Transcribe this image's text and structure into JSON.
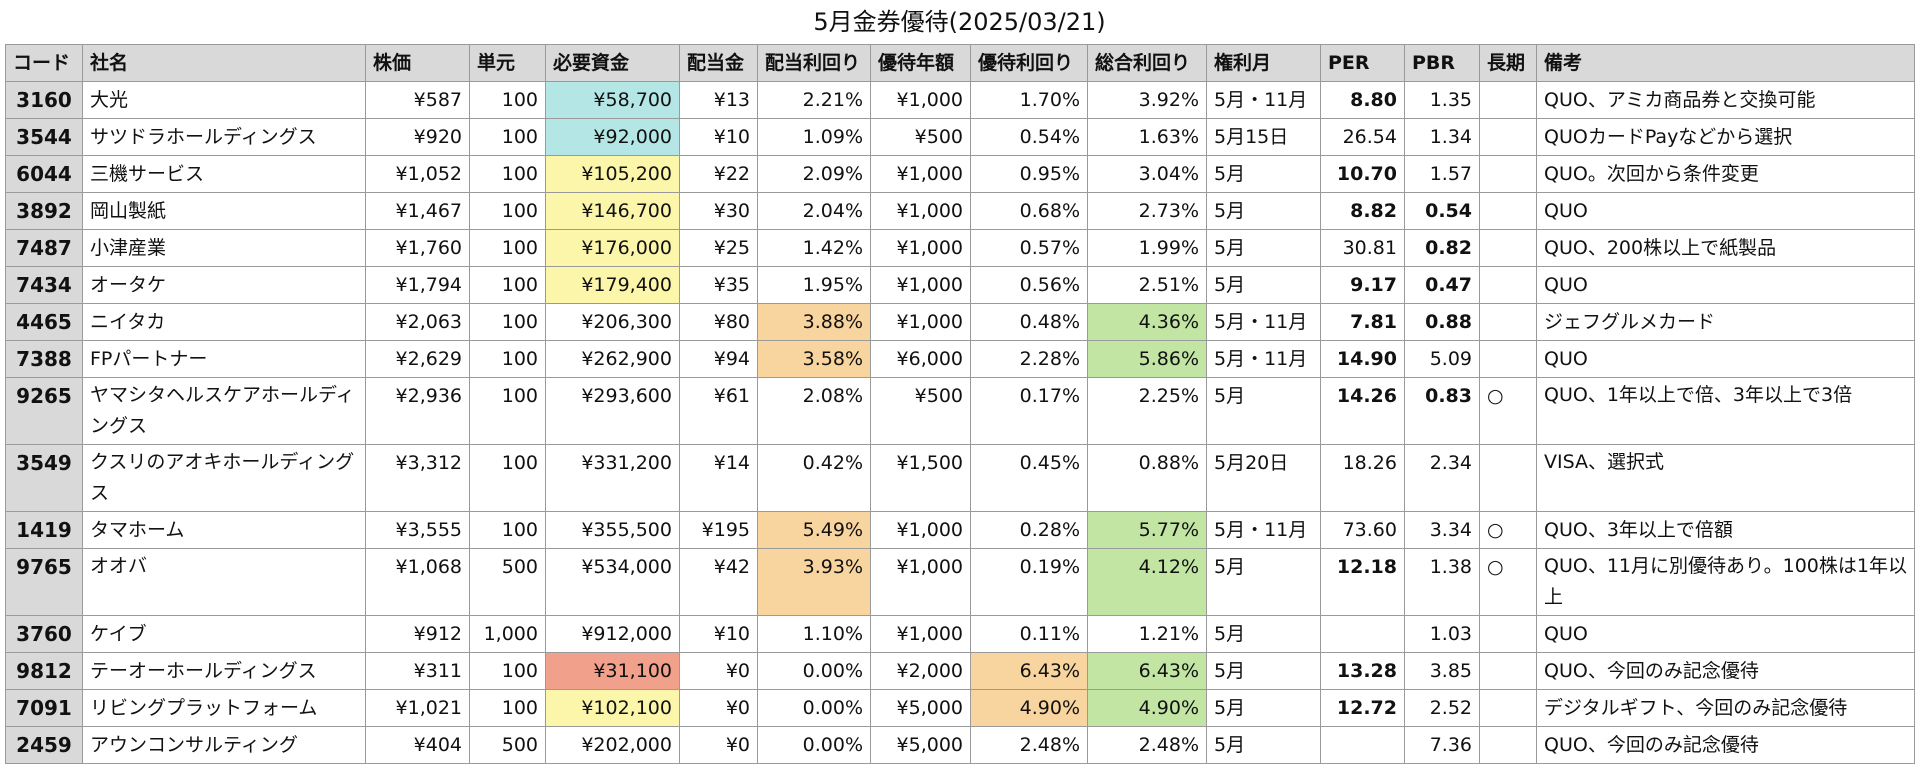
{
  "title": "5月金券優待(2025/03/21)",
  "headers": [
    "コード",
    "社名",
    "株価",
    "単元",
    "必要資金",
    "配当金",
    "配当利回り",
    "優待年額",
    "優待利回り",
    "総合利回り",
    "権利月",
    "PER",
    "PBR",
    "長期",
    "備考"
  ],
  "colors": {
    "cyan": "#b5e6e6",
    "yellow": "#fbf6a9",
    "orange": "#f8d49e",
    "green": "#c2e5a4",
    "salmon": "#f0a08b",
    "header": "#d9d9d9"
  },
  "rows": [
    {
      "code": "3160",
      "name": "大光",
      "price": "¥587",
      "unit": "100",
      "fund": "¥58,700",
      "div": "¥13",
      "div_yield": "2.21%",
      "perk": "¥1,000",
      "perk_yield": "1.70%",
      "total_yield": "3.92%",
      "month": "5月・11月",
      "per": "8.80",
      "pbr": "1.35",
      "long": "",
      "note": "QUO、アミカ商品券と交換可能"
    },
    {
      "code": "3544",
      "name": "サツドラホールディングス",
      "price": "¥920",
      "unit": "100",
      "fund": "¥92,000",
      "div": "¥10",
      "div_yield": "1.09%",
      "perk": "¥500",
      "perk_yield": "0.54%",
      "total_yield": "1.63%",
      "month": "5月15日",
      "per": "26.54",
      "pbr": "1.34",
      "long": "",
      "note": "QUOカードPayなどから選択"
    },
    {
      "code": "6044",
      "name": "三機サービス",
      "price": "¥1,052",
      "unit": "100",
      "fund": "¥105,200",
      "div": "¥22",
      "div_yield": "2.09%",
      "perk": "¥1,000",
      "perk_yield": "0.95%",
      "total_yield": "3.04%",
      "month": "5月",
      "per": "10.70",
      "pbr": "1.57",
      "long": "",
      "note": "QUO。次回から条件変更"
    },
    {
      "code": "3892",
      "name": "岡山製紙",
      "price": "¥1,467",
      "unit": "100",
      "fund": "¥146,700",
      "div": "¥30",
      "div_yield": "2.04%",
      "perk": "¥1,000",
      "perk_yield": "0.68%",
      "total_yield": "2.73%",
      "month": "5月",
      "per": "8.82",
      "pbr": "0.54",
      "long": "",
      "note": "QUO"
    },
    {
      "code": "7487",
      "name": "小津産業",
      "price": "¥1,760",
      "unit": "100",
      "fund": "¥176,000",
      "div": "¥25",
      "div_yield": "1.42%",
      "perk": "¥1,000",
      "perk_yield": "0.57%",
      "total_yield": "1.99%",
      "month": "5月",
      "per": "30.81",
      "pbr": "0.82",
      "long": "",
      "note": "QUO、200株以上で紙製品"
    },
    {
      "code": "7434",
      "name": "オータケ",
      "price": "¥1,794",
      "unit": "100",
      "fund": "¥179,400",
      "div": "¥35",
      "div_yield": "1.95%",
      "perk": "¥1,000",
      "perk_yield": "0.56%",
      "total_yield": "2.51%",
      "month": "5月",
      "per": "9.17",
      "pbr": "0.47",
      "long": "",
      "note": "QUO"
    },
    {
      "code": "4465",
      "name": "ニイタカ",
      "price": "¥2,063",
      "unit": "100",
      "fund": "¥206,300",
      "div": "¥80",
      "div_yield": "3.88%",
      "perk": "¥1,000",
      "perk_yield": "0.48%",
      "total_yield": "4.36%",
      "month": "5月・11月",
      "per": "7.81",
      "pbr": "0.88",
      "long": "",
      "note": "ジェフグルメカード"
    },
    {
      "code": "7388",
      "name": "FPパートナー",
      "price": "¥2,629",
      "unit": "100",
      "fund": "¥262,900",
      "div": "¥94",
      "div_yield": "3.58%",
      "perk": "¥6,000",
      "perk_yield": "2.28%",
      "total_yield": "5.86%",
      "month": "5月・11月",
      "per": "14.90",
      "pbr": "5.09",
      "long": "",
      "note": "QUO"
    },
    {
      "code": "9265",
      "name": "ヤマシタヘルスケアホールディングス",
      "price": "¥2,936",
      "unit": "100",
      "fund": "¥293,600",
      "div": "¥61",
      "div_yield": "2.08%",
      "perk": "¥500",
      "perk_yield": "0.17%",
      "total_yield": "2.25%",
      "month": "5月",
      "per": "14.26",
      "pbr": "0.83",
      "long": "○",
      "note": "QUO、1年以上で倍、3年以上で3倍"
    },
    {
      "code": "3549",
      "name": "クスリのアオキホールディングス",
      "price": "¥3,312",
      "unit": "100",
      "fund": "¥331,200",
      "div": "¥14",
      "div_yield": "0.42%",
      "perk": "¥1,500",
      "perk_yield": "0.45%",
      "total_yield": "0.88%",
      "month": "5月20日",
      "per": "18.26",
      "pbr": "2.34",
      "long": "",
      "note": "VISA、選択式"
    },
    {
      "code": "1419",
      "name": "タマホーム",
      "price": "¥3,555",
      "unit": "100",
      "fund": "¥355,500",
      "div": "¥195",
      "div_yield": "5.49%",
      "perk": "¥1,000",
      "perk_yield": "0.28%",
      "total_yield": "5.77%",
      "month": "5月・11月",
      "per": "73.60",
      "pbr": "3.34",
      "long": "○",
      "note": "QUO、3年以上で倍額"
    },
    {
      "code": "9765",
      "name": "オオバ",
      "price": "¥1,068",
      "unit": "500",
      "fund": "¥534,000",
      "div": "¥42",
      "div_yield": "3.93%",
      "perk": "¥1,000",
      "perk_yield": "0.19%",
      "total_yield": "4.12%",
      "month": "5月",
      "per": "12.18",
      "pbr": "1.38",
      "long": "○",
      "note": "QUO、11月に別優待あり。100株は1年以上"
    },
    {
      "code": "3760",
      "name": "ケイブ",
      "price": "¥912",
      "unit": "1,000",
      "fund": "¥912,000",
      "div": "¥10",
      "div_yield": "1.10%",
      "perk": "¥1,000",
      "perk_yield": "0.11%",
      "total_yield": "1.21%",
      "month": "5月",
      "per": "",
      "pbr": "1.03",
      "long": "",
      "note": "QUO"
    },
    {
      "code": "9812",
      "name": "テーオーホールディングス",
      "price": "¥311",
      "unit": "100",
      "fund": "¥31,100",
      "div": "¥0",
      "div_yield": "0.00%",
      "perk": "¥2,000",
      "perk_yield": "6.43%",
      "total_yield": "6.43%",
      "month": "5月",
      "per": "13.28",
      "pbr": "3.85",
      "long": "",
      "note": "QUO、今回のみ記念優待"
    },
    {
      "code": "7091",
      "name": "リビングプラットフォーム",
      "price": "¥1,021",
      "unit": "100",
      "fund": "¥102,100",
      "div": "¥0",
      "div_yield": "0.00%",
      "perk": "¥5,000",
      "perk_yield": "4.90%",
      "total_yield": "4.90%",
      "month": "5月",
      "per": "12.72",
      "pbr": "2.52",
      "long": "",
      "note": "デジタルギフト、今回のみ記念優待"
    },
    {
      "code": "2459",
      "name": "アウンコンサルティング",
      "price": "¥404",
      "unit": "500",
      "fund": "¥202,000",
      "div": "¥0",
      "div_yield": "0.00%",
      "perk": "¥5,000",
      "perk_yield": "2.48%",
      "total_yield": "2.48%",
      "month": "5月",
      "per": "",
      "pbr": "7.36",
      "long": "",
      "note": "QUO、今回のみ記念優待"
    }
  ]
}
